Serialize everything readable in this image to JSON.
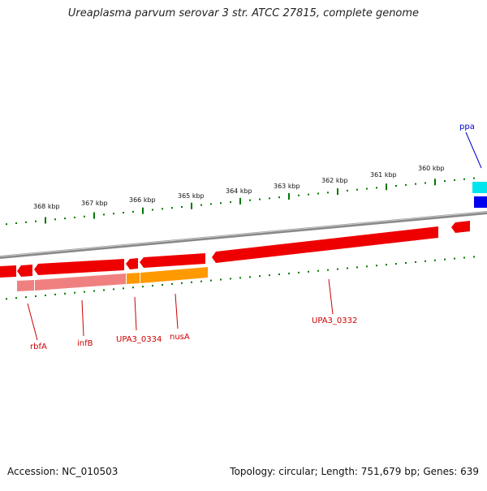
{
  "title": "Ureaplasma parvum serovar 3 str. ATCC 27815, complete genome",
  "footer": {
    "accession": "Accession: NC_010503",
    "stats": "Topology: circular; Length: 751,679 bp; Genes: 639"
  },
  "scale_ticks": [
    "368 kbp",
    "367 kbp",
    "366 kbp",
    "365 kbp",
    "364 kbp",
    "363 kbp",
    "362 kbp",
    "361 kbp",
    "360 kbp"
  ],
  "gene_labels": [
    "rbfA",
    "infB",
    "UPA3_0334",
    "nusA",
    "UPA3_0332",
    "ppa"
  ],
  "colors": {
    "backbone": "#8a8a8a",
    "gene_red": "#ee0000",
    "gene_pink": "#f08080",
    "gene_orange": "#ff9900",
    "gene_cyan": "#00e5ee",
    "gene_blue": "#0000ee",
    "ticks": "#007700",
    "label_red": "#cc0000",
    "label_blue": "#0000cc"
  }
}
